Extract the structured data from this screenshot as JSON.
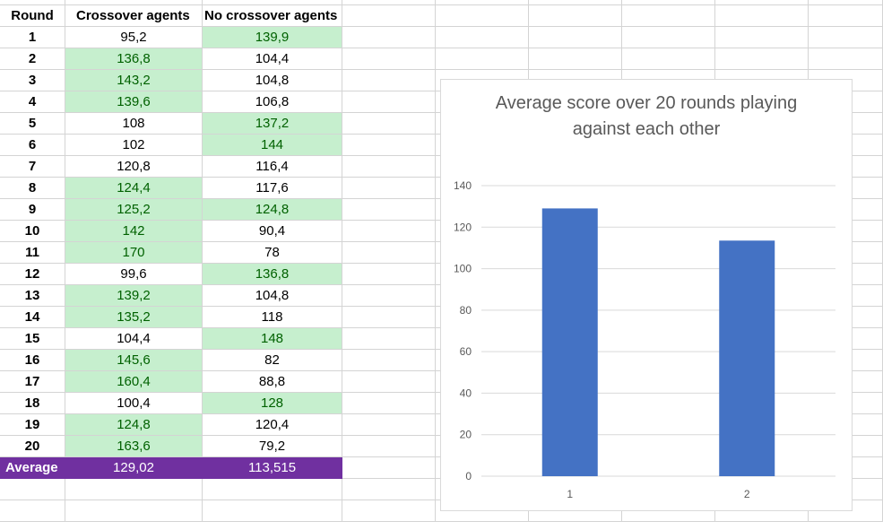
{
  "table": {
    "headers": [
      "Round",
      "Crossover agents",
      "No crossover agents"
    ],
    "rows": [
      {
        "round": "1",
        "crossover": "95,2",
        "no_crossover": "139,9",
        "winner": "no_crossover"
      },
      {
        "round": "2",
        "crossover": "136,8",
        "no_crossover": "104,4",
        "winner": "crossover"
      },
      {
        "round": "3",
        "crossover": "143,2",
        "no_crossover": "104,8",
        "winner": "crossover"
      },
      {
        "round": "4",
        "crossover": "139,6",
        "no_crossover": "106,8",
        "winner": "crossover"
      },
      {
        "round": "5",
        "crossover": "108",
        "no_crossover": "137,2",
        "winner": "no_crossover"
      },
      {
        "round": "6",
        "crossover": "102",
        "no_crossover": "144",
        "winner": "no_crossover"
      },
      {
        "round": "7",
        "crossover": "120,8",
        "no_crossover": "116,4",
        "winner": "none"
      },
      {
        "round": "8",
        "crossover": "124,4",
        "no_crossover": "117,6",
        "winner": "crossover"
      },
      {
        "round": "9",
        "crossover": "125,2",
        "no_crossover": "124,8",
        "winner": "both"
      },
      {
        "round": "10",
        "crossover": "142",
        "no_crossover": "90,4",
        "winner": "crossover"
      },
      {
        "round": "11",
        "crossover": "170",
        "no_crossover": "78",
        "winner": "crossover"
      },
      {
        "round": "12",
        "crossover": "99,6",
        "no_crossover": "136,8",
        "winner": "no_crossover"
      },
      {
        "round": "13",
        "crossover": "139,2",
        "no_crossover": "104,8",
        "winner": "crossover"
      },
      {
        "round": "14",
        "crossover": "135,2",
        "no_crossover": "118",
        "winner": "crossover"
      },
      {
        "round": "15",
        "crossover": "104,4",
        "no_crossover": "148",
        "winner": "no_crossover"
      },
      {
        "round": "16",
        "crossover": "145,6",
        "no_crossover": "82",
        "winner": "crossover"
      },
      {
        "round": "17",
        "crossover": "160,4",
        "no_crossover": "88,8",
        "winner": "crossover"
      },
      {
        "round": "18",
        "crossover": "100,4",
        "no_crossover": "128",
        "winner": "no_crossover"
      },
      {
        "round": "19",
        "crossover": "124,8",
        "no_crossover": "120,4",
        "winner": "crossover"
      },
      {
        "round": "20",
        "crossover": "163,6",
        "no_crossover": "79,2",
        "winner": "crossover"
      }
    ],
    "average": {
      "label": "Average",
      "crossover": "129,02",
      "no_crossover": "113,515"
    }
  },
  "colors": {
    "highlight_fill": "#c6efce",
    "highlight_text": "#006100",
    "average_fill": "#7030a0",
    "bar": "#4472c4"
  },
  "chart_data": {
    "type": "bar",
    "title": "Average score over 20 rounds playing against each other",
    "categories": [
      "1",
      "2"
    ],
    "values": [
      129.02,
      113.515
    ],
    "ylim": [
      0,
      140
    ],
    "yticks": [
      0,
      20,
      40,
      60,
      80,
      100,
      120,
      140
    ],
    "xlabel": "",
    "ylabel": "",
    "grid": true
  }
}
